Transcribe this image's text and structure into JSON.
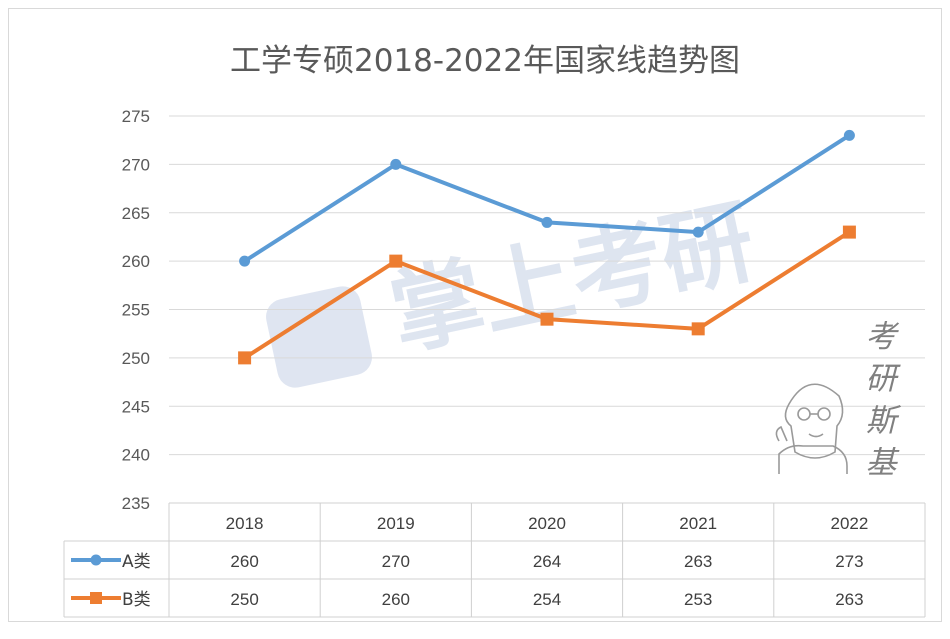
{
  "chart_data": {
    "type": "line",
    "title": "工学专硕2018-2022年国家线趋势图",
    "categories": [
      "2018",
      "2019",
      "2020",
      "2021",
      "2022"
    ],
    "series": [
      {
        "name": "A类",
        "values": [
          260,
          270,
          264,
          263,
          273
        ],
        "color": "#5b9bd5",
        "marker": "circle"
      },
      {
        "name": "B类",
        "values": [
          250,
          260,
          254,
          253,
          263
        ],
        "color": "#ed7d31",
        "marker": "square"
      }
    ],
    "ylim": [
      235,
      275
    ],
    "yticks": [
      275,
      270,
      265,
      260,
      255,
      250,
      245,
      240,
      235
    ],
    "grid": true,
    "legend": "data-table",
    "xlabel": "",
    "ylabel": ""
  },
  "watermark": {
    "text": "掌上考研",
    "color": "#b8c6e0"
  },
  "brand": {
    "chars": [
      "考",
      "研",
      "斯",
      "基"
    ],
    "icon": "cartoon-boy-icon"
  }
}
